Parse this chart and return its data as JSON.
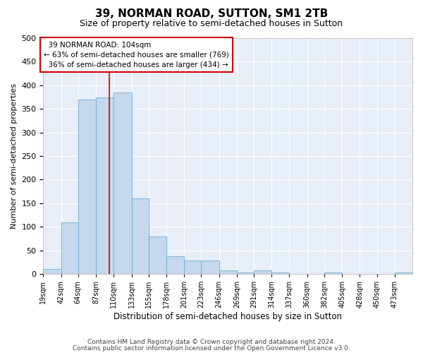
{
  "title": "39, NORMAN ROAD, SUTTON, SM1 2TB",
  "subtitle": "Size of property relative to semi-detached houses in Sutton",
  "xlabel": "Distribution of semi-detached houses by size in Sutton",
  "ylabel": "Number of semi-detached properties",
  "footnote1": "Contains HM Land Registry data © Crown copyright and database right 2024.",
  "footnote2": "Contains public sector information licensed under the Open Government Licence v3.0.",
  "bar_edges": [
    19,
    42,
    64,
    87,
    110,
    133,
    155,
    178,
    201,
    223,
    246,
    269,
    291,
    314,
    337,
    360,
    382,
    405,
    428,
    450,
    473
  ],
  "bar_heights": [
    10,
    110,
    370,
    375,
    385,
    160,
    80,
    38,
    28,
    28,
    8,
    3,
    8,
    3,
    0,
    0,
    3,
    0,
    0,
    0,
    3
  ],
  "bar_color": "#c5d8ed",
  "bar_edge_color": "#6aaed6",
  "subject_value": 104,
  "subject_label": "39 NORMAN ROAD: 104sqm",
  "pct_smaller": 63,
  "n_smaller": 769,
  "pct_larger": 36,
  "n_larger": 434,
  "annotation_box_color": "#ffffff",
  "annotation_box_edge": "#cc0000",
  "vline_color": "#cc0000",
  "ylim": [
    0,
    500
  ],
  "background_color": "#e8eef7",
  "grid_color": "#ffffff",
  "tick_labels": [
    "19sqm",
    "42sqm",
    "64sqm",
    "87sqm",
    "110sqm",
    "133sqm",
    "155sqm",
    "178sqm",
    "201sqm",
    "223sqm",
    "246sqm",
    "269sqm",
    "291sqm",
    "314sqm",
    "337sqm",
    "360sqm",
    "382sqm",
    "405sqm",
    "428sqm",
    "450sqm",
    "473sqm"
  ],
  "yticks": [
    0,
    50,
    100,
    150,
    200,
    250,
    300,
    350,
    400,
    450,
    500
  ]
}
